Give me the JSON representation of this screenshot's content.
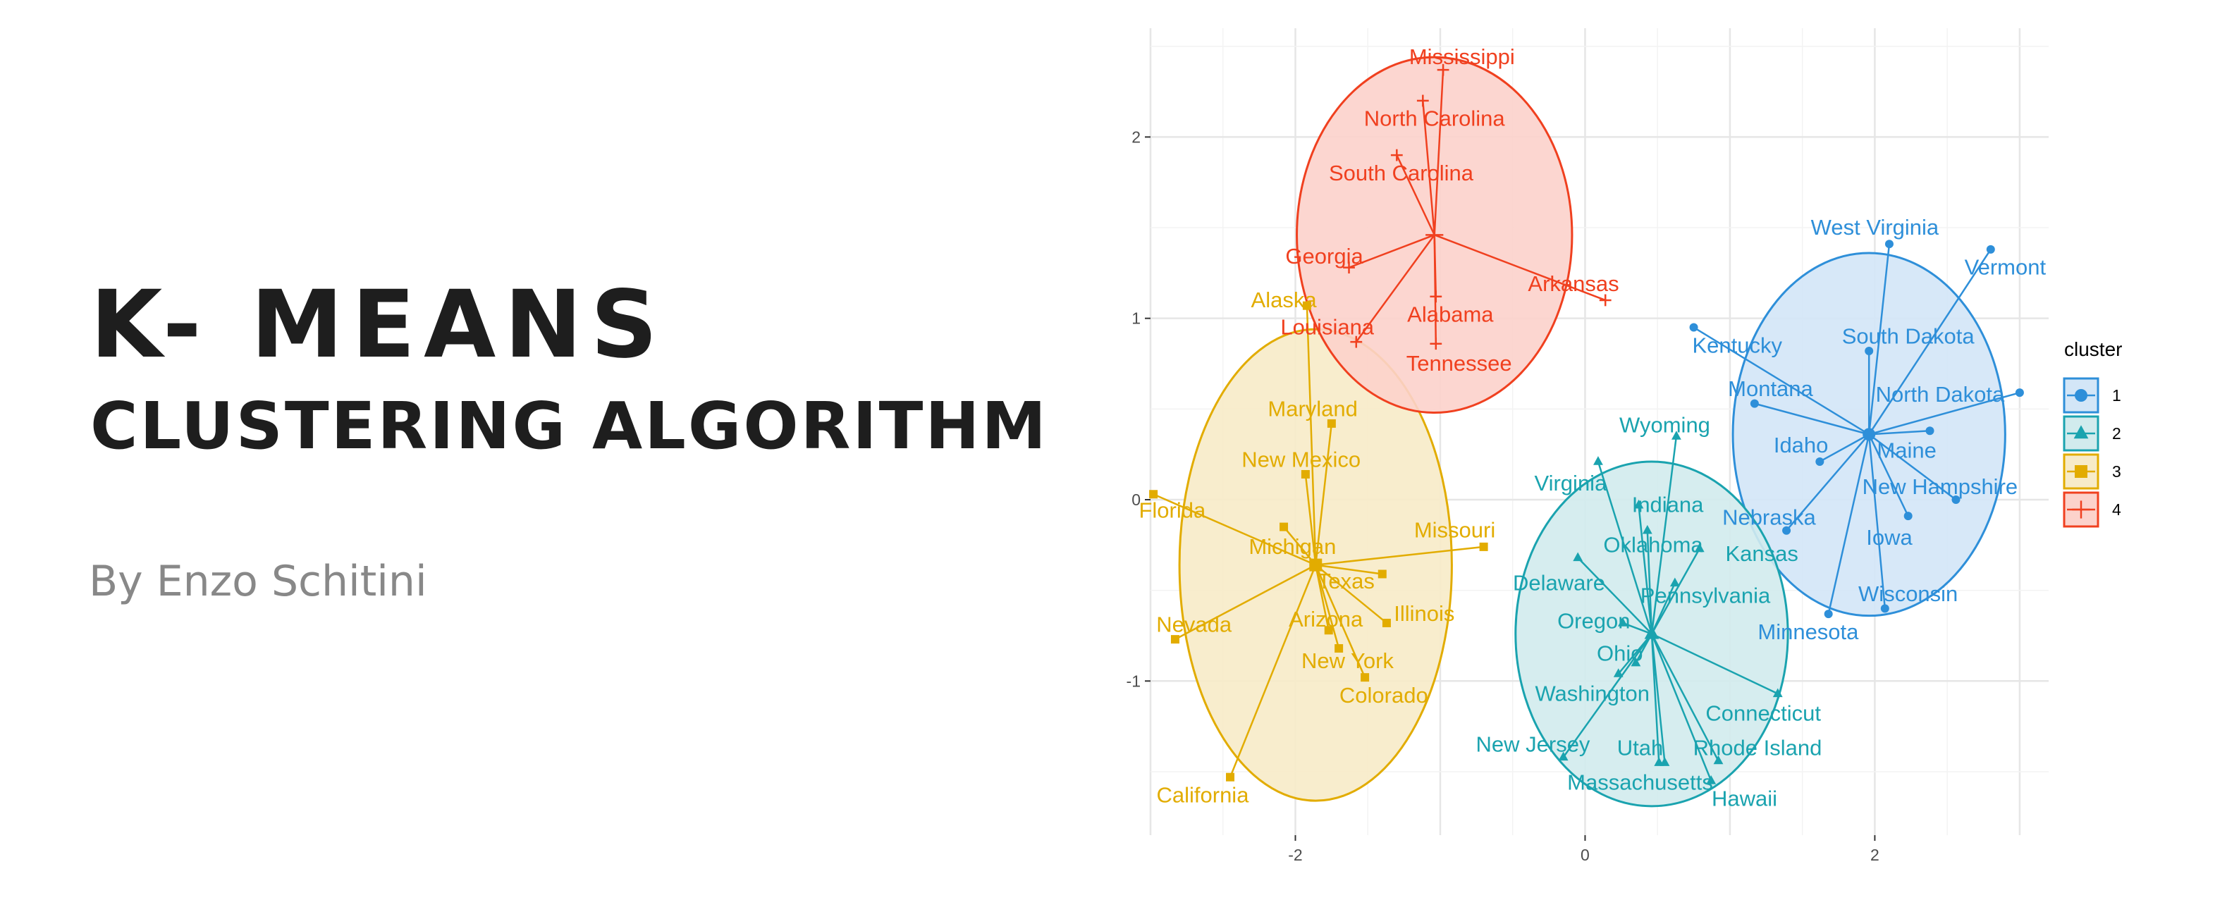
{
  "header": {
    "title": "K- MEANS",
    "subtitle": "CLUSTERING ALGORITHM",
    "byline": "By Enzo Schitini"
  },
  "chart_data": {
    "type": "scatter",
    "title": "",
    "xlabel": "",
    "ylabel": "",
    "xlim": [
      -3.0,
      3.2
    ],
    "ylim": [
      -1.85,
      2.6
    ],
    "x_ticks": [
      -2,
      0,
      2
    ],
    "x_tick_labels": [
      "-2",
      "0",
      "2"
    ],
    "y_ticks": [
      -1,
      0,
      1,
      2
    ],
    "y_tick_labels": [
      "-1",
      "0",
      "1",
      "2"
    ],
    "grid": true,
    "legend": {
      "title": "cluster",
      "position": "right"
    },
    "clusters": [
      {
        "name": "1",
        "color": "#2E8FD9",
        "fill": "#D3E6F7",
        "marker": "circle",
        "center": [
          1.96,
          0.36
        ],
        "ellipse": {
          "cx": 1.96,
          "cy": 0.36,
          "rx": 0.94,
          "ry": 1.0,
          "angle": 0
        },
        "points": [
          {
            "label": "West Virginia",
            "x": 2.1,
            "y": 1.41,
            "lx": 2.0,
            "ly": 1.5
          },
          {
            "label": "Vermont",
            "x": 2.8,
            "y": 1.38,
            "lx": 2.9,
            "ly": 1.28
          },
          {
            "label": "Kentucky",
            "x": 0.75,
            "y": 0.95,
            "lx": 1.05,
            "ly": 0.85
          },
          {
            "label": "South Dakota",
            "x": 1.96,
            "y": 0.82,
            "lx": 2.23,
            "ly": 0.9
          },
          {
            "label": "Montana",
            "x": 1.17,
            "y": 0.53,
            "lx": 1.28,
            "ly": 0.61
          },
          {
            "label": "North Dakota",
            "x": 3.0,
            "y": 0.59,
            "lx": 2.45,
            "ly": 0.58
          },
          {
            "label": "Idaho",
            "x": 1.62,
            "y": 0.21,
            "lx": 1.49,
            "ly": 0.3
          },
          {
            "label": "Maine",
            "x": 2.38,
            "y": 0.38,
            "lx": 2.22,
            "ly": 0.27
          },
          {
            "label": "New Hampshire",
            "x": 2.56,
            "y": 0.0,
            "lx": 2.45,
            "ly": 0.07
          },
          {
            "label": "Nebraska",
            "x": 1.39,
            "y": -0.17,
            "lx": 1.27,
            "ly": -0.1
          },
          {
            "label": "Iowa",
            "x": 2.23,
            "y": -0.09,
            "lx": 2.1,
            "ly": -0.21
          },
          {
            "label": "Wisconsin",
            "x": 2.07,
            "y": -0.6,
            "lx": 2.23,
            "ly": -0.52
          },
          {
            "label": "Minnesota",
            "x": 1.68,
            "y": -0.63,
            "lx": 1.54,
            "ly": -0.73
          }
        ]
      },
      {
        "name": "2",
        "color": "#1AA3AF",
        "fill": "#D1EBED",
        "marker": "triangle",
        "center": [
          0.46,
          -0.74
        ],
        "ellipse": {
          "cx": 0.46,
          "cy": -0.74,
          "rx": 0.94,
          "ry": 0.95,
          "angle": 0
        },
        "points": [
          {
            "label": "Wyoming",
            "x": 0.63,
            "y": 0.35,
            "lx": 0.55,
            "ly": 0.41
          },
          {
            "label": "Virginia",
            "x": 0.09,
            "y": 0.21,
            "lx": -0.1,
            "ly": 0.09
          },
          {
            "label": "Indiana",
            "x": 0.37,
            "y": -0.03,
            "lx": 0.57,
            "ly": -0.03
          },
          {
            "label": "Oklahoma",
            "x": 0.43,
            "y": -0.17,
            "lx": 0.47,
            "ly": -0.25
          },
          {
            "label": "Kansas",
            "x": 0.79,
            "y": -0.27,
            "lx": 1.22,
            "ly": -0.3
          },
          {
            "label": "Delaware",
            "x": -0.05,
            "y": -0.32,
            "lx": -0.18,
            "ly": -0.46
          },
          {
            "label": "Pennsylvania",
            "x": 0.62,
            "y": -0.46,
            "lx": 0.83,
            "ly": -0.53
          },
          {
            "label": "Oregon",
            "x": 0.26,
            "y": -0.68,
            "lx": 0.06,
            "ly": -0.67
          },
          {
            "label": "Ohio",
            "x": 0.35,
            "y": -0.9,
            "lx": 0.24,
            "ly": -0.85
          },
          {
            "label": "Washington",
            "x": 0.23,
            "y": -0.96,
            "lx": 0.05,
            "ly": -1.07
          },
          {
            "label": "Connecticut",
            "x": 1.33,
            "y": -1.07,
            "lx": 1.23,
            "ly": -1.18
          },
          {
            "label": "New Jersey",
            "x": -0.15,
            "y": -1.42,
            "lx": -0.36,
            "ly": -1.35
          },
          {
            "label": "Utah",
            "x": 0.51,
            "y": -1.45,
            "lx": 0.38,
            "ly": -1.37
          },
          {
            "label": "Rhode Island",
            "x": 0.92,
            "y": -1.44,
            "lx": 1.19,
            "ly": -1.37
          },
          {
            "label": "Massachusetts",
            "x": 0.55,
            "y": -1.45,
            "lx": 0.38,
            "ly": -1.56
          },
          {
            "label": "Hawaii",
            "x": 0.87,
            "y": -1.55,
            "lx": 1.1,
            "ly": -1.65
          }
        ]
      },
      {
        "name": "3",
        "color": "#E2AC00",
        "fill": "#F7EBC8",
        "marker": "square",
        "center": [
          -1.86,
          -0.36
        ],
        "ellipse": {
          "cx": -1.86,
          "cy": -0.36,
          "rx": 0.94,
          "ry": 1.3,
          "angle": 0
        },
        "points": [
          {
            "label": "Alaska",
            "x": -1.92,
            "y": 1.07,
            "lx": -2.08,
            "ly": 1.1
          },
          {
            "label": "Maryland",
            "x": -1.75,
            "y": 0.42,
            "lx": -1.88,
            "ly": 0.5
          },
          {
            "label": "New Mexico",
            "x": -1.93,
            "y": 0.14,
            "lx": -1.96,
            "ly": 0.22
          },
          {
            "label": "Florida",
            "x": -2.98,
            "y": 0.03,
            "lx": -2.85,
            "ly": -0.06
          },
          {
            "label": "Michigan",
            "x": -2.08,
            "y": -0.15,
            "lx": -2.02,
            "ly": -0.26
          },
          {
            "label": "Missouri",
            "x": -0.7,
            "y": -0.26,
            "lx": -0.9,
            "ly": -0.17
          },
          {
            "label": "Texas",
            "x": -1.4,
            "y": -0.41,
            "lx": -1.65,
            "ly": -0.45
          },
          {
            "label": "Illinois",
            "x": -1.37,
            "y": -0.68,
            "lx": -1.11,
            "ly": -0.63
          },
          {
            "label": "Arizona",
            "x": -1.77,
            "y": -0.72,
            "lx": -1.79,
            "ly": -0.66
          },
          {
            "label": "Nevada",
            "x": -2.83,
            "y": -0.77,
            "lx": -2.7,
            "ly": -0.69
          },
          {
            "label": "New York",
            "x": -1.7,
            "y": -0.82,
            "lx": -1.64,
            "ly": -0.89
          },
          {
            "label": "Colorado",
            "x": -1.52,
            "y": -0.98,
            "lx": -1.39,
            "ly": -1.08
          },
          {
            "label": "California",
            "x": -2.45,
            "y": -1.53,
            "lx": -2.64,
            "ly": -1.63
          }
        ]
      },
      {
        "name": "4",
        "color": "#F0401F",
        "fill": "#FCD2CB",
        "marker": "cross",
        "center": [
          -1.04,
          1.46
        ],
        "ellipse": {
          "cx": -1.04,
          "cy": 1.46,
          "rx": 0.95,
          "ry": 0.98,
          "angle": 0
        },
        "points": [
          {
            "label": "Mississippi",
            "x": -0.98,
            "y": 2.37,
            "lx": -0.85,
            "ly": 2.44
          },
          {
            "label": "North Carolina",
            "x": -1.12,
            "y": 2.2,
            "lx": -1.04,
            "ly": 2.1
          },
          {
            "label": "South Carolina",
            "x": -1.3,
            "y": 1.9,
            "lx": -1.27,
            "ly": 1.8
          },
          {
            "label": "Georgia",
            "x": -1.63,
            "y": 1.28,
            "lx": -1.8,
            "ly": 1.34
          },
          {
            "label": "Arkansas",
            "x": 0.14,
            "y": 1.1,
            "lx": -0.08,
            "ly": 1.19
          },
          {
            "label": "Alabama",
            "x": -1.03,
            "y": 1.12,
            "lx": -0.93,
            "ly": 1.02
          },
          {
            "label": "Louisiana",
            "x": -1.58,
            "y": 0.87,
            "lx": -1.78,
            "ly": 0.95
          },
          {
            "label": "Tennessee",
            "x": -1.03,
            "y": 0.86,
            "lx": -0.87,
            "ly": 0.75
          }
        ]
      }
    ]
  }
}
